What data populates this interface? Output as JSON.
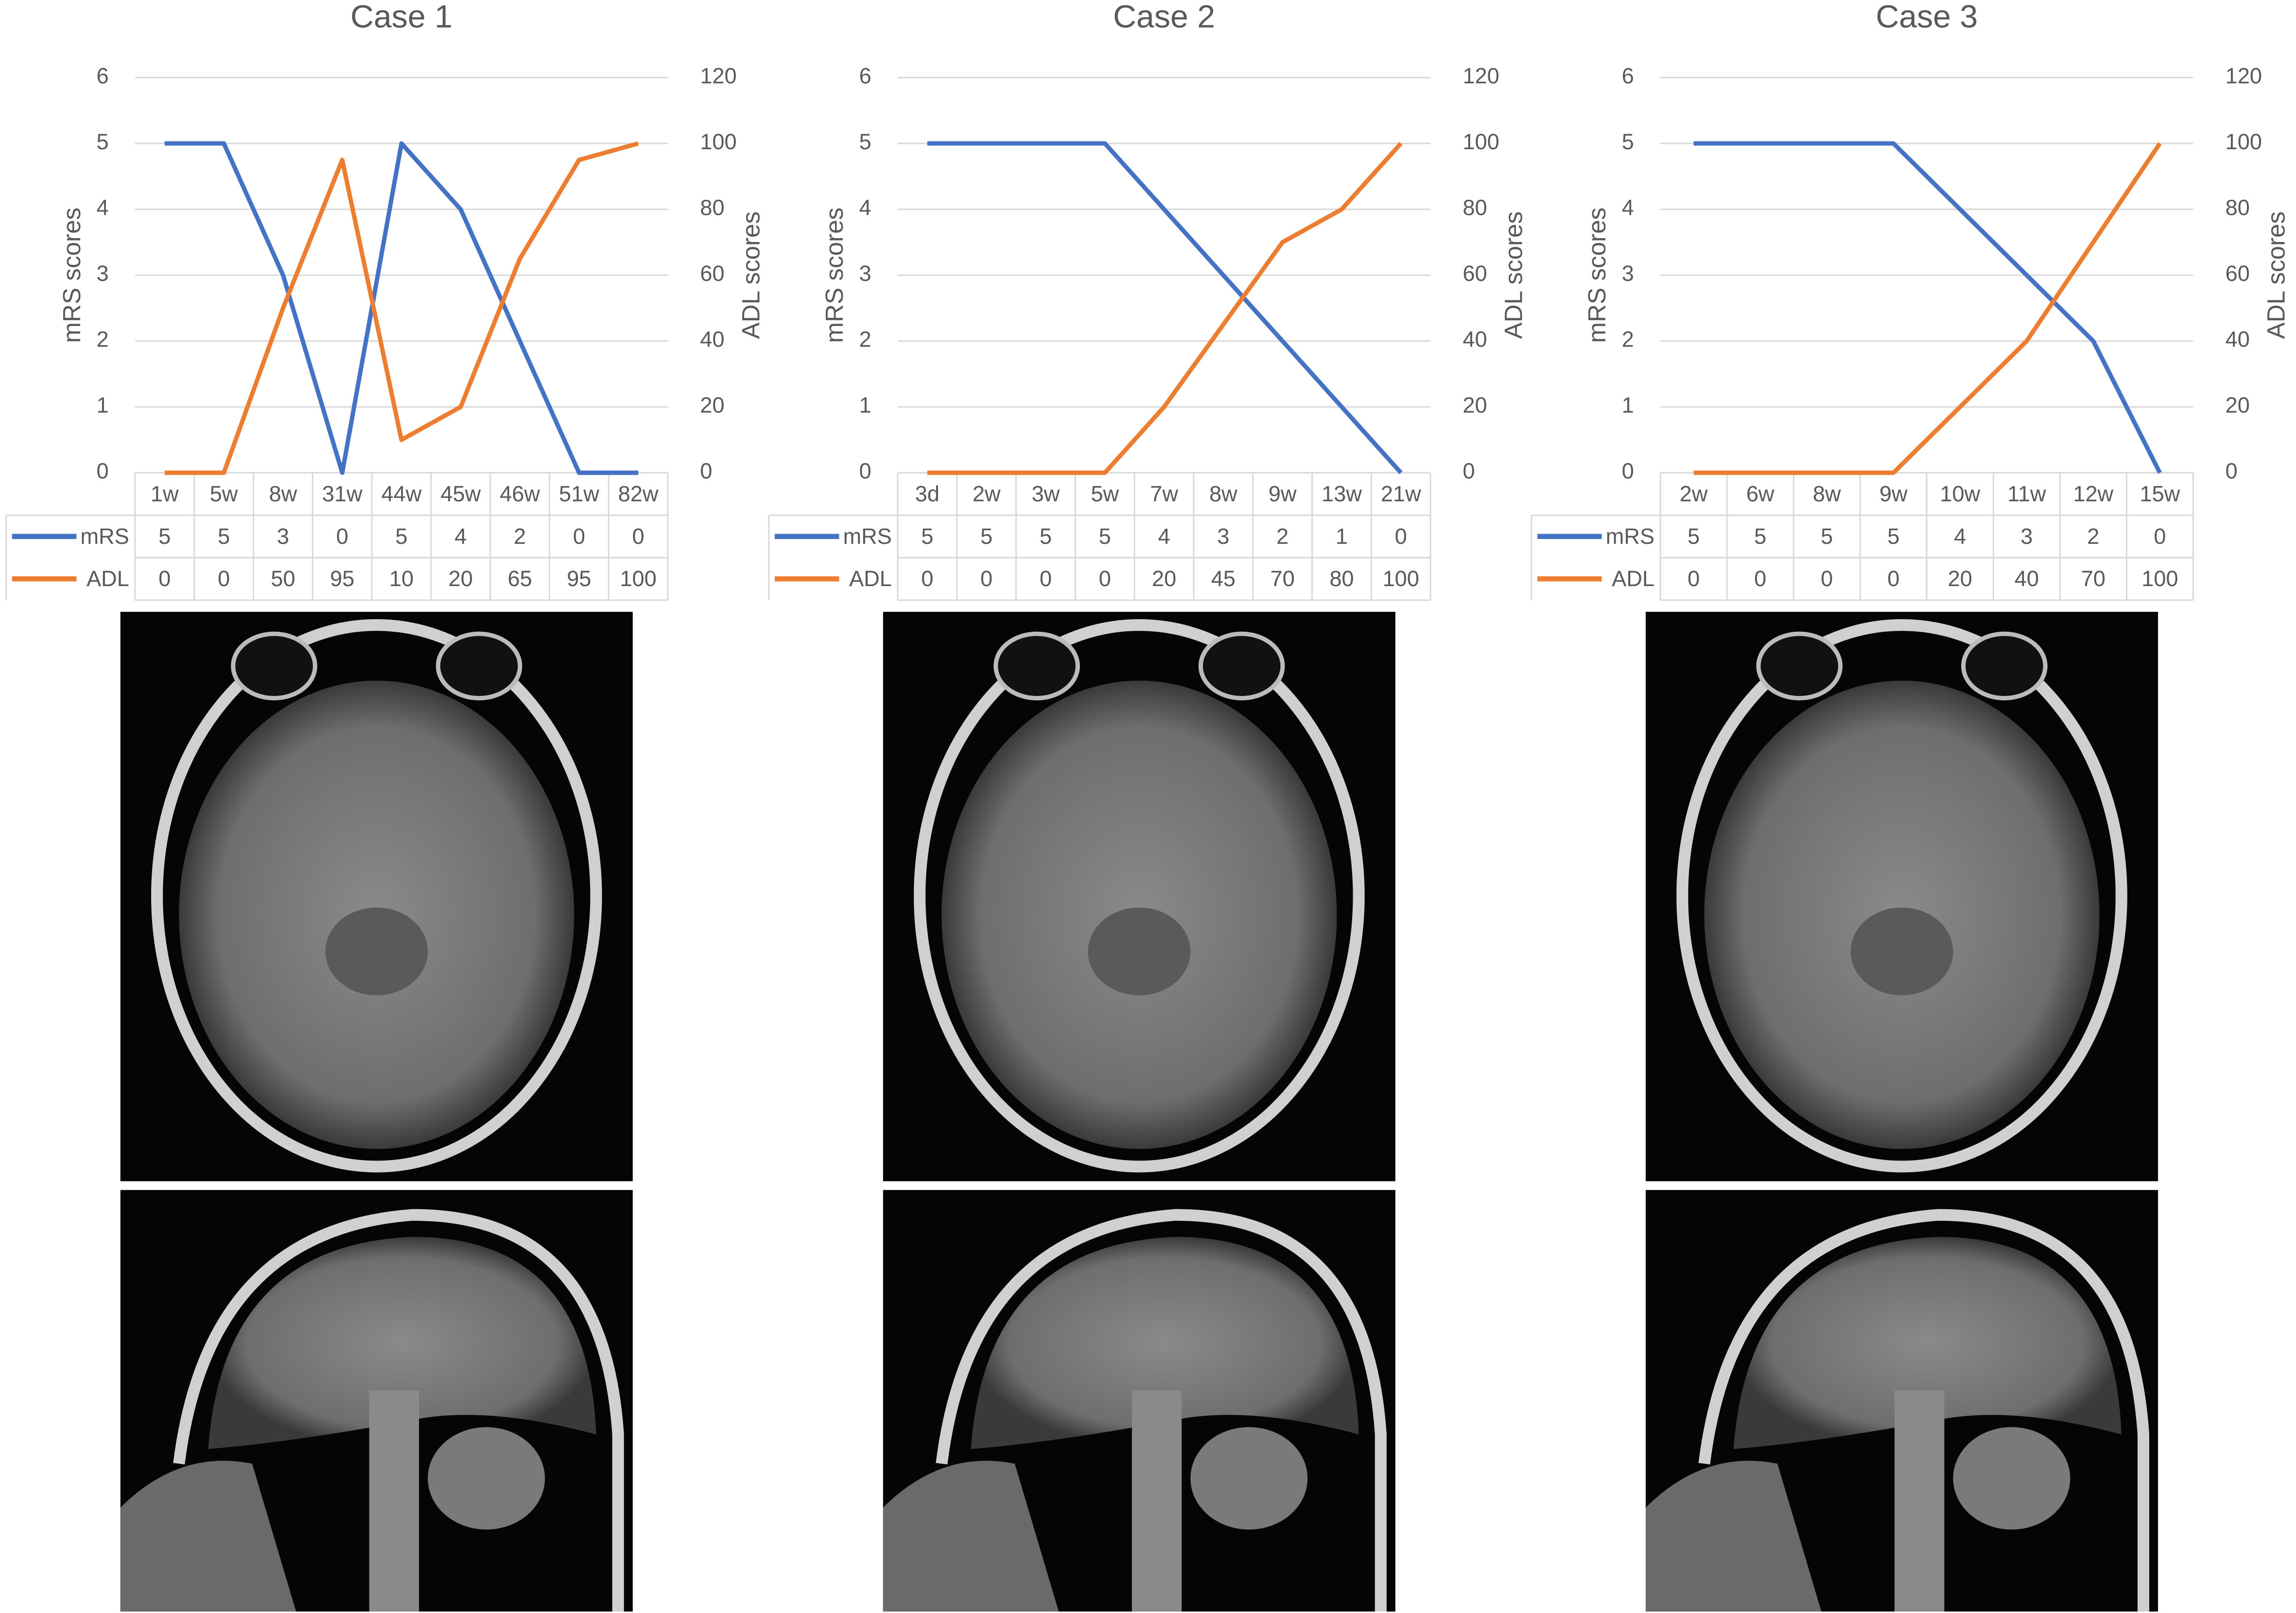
{
  "chart_data": [
    {
      "type": "line",
      "title": "Case 1",
      "y_label": "mRS scores",
      "y2_label": "ADL scores",
      "categories": [
        "1w",
        "5w",
        "8w",
        "31w",
        "44w",
        "45w",
        "46w",
        "51w",
        "82w"
      ],
      "series": [
        {
          "name": "mRS",
          "color": "#4472c4",
          "axis": "y",
          "values": [
            5,
            5,
            3,
            0,
            5,
            4,
            2,
            0,
            0
          ]
        },
        {
          "name": "ADL",
          "color": "#ed7d31",
          "axis": "y2",
          "values": [
            0,
            0,
            50,
            95,
            10,
            20,
            65,
            95,
            100
          ]
        }
      ],
      "ylim": [
        0,
        6
      ],
      "yticks": [
        0,
        1,
        2,
        3,
        4,
        5,
        6
      ],
      "y2lim": [
        0,
        120
      ],
      "y2ticks": [
        0,
        20,
        40,
        60,
        80,
        100,
        120
      ],
      "grid": true
    },
    {
      "type": "line",
      "title": "Case 2",
      "y_label": "mRS scores",
      "y2_label": "ADL scores",
      "categories": [
        "3d",
        "2w",
        "3w",
        "5w",
        "7w",
        "8w",
        "9w",
        "13w",
        "21w"
      ],
      "series": [
        {
          "name": "mRS",
          "color": "#4472c4",
          "axis": "y",
          "values": [
            5,
            5,
            5,
            5,
            4,
            3,
            2,
            1,
            0
          ]
        },
        {
          "name": "ADL",
          "color": "#ed7d31",
          "axis": "y2",
          "values": [
            0,
            0,
            0,
            0,
            20,
            45,
            70,
            80,
            100
          ]
        }
      ],
      "ylim": [
        0,
        6
      ],
      "yticks": [
        0,
        1,
        2,
        3,
        4,
        5,
        6
      ],
      "y2lim": [
        0,
        120
      ],
      "y2ticks": [
        0,
        20,
        40,
        60,
        80,
        100,
        120
      ],
      "grid": true
    },
    {
      "type": "line",
      "title": "Case 3",
      "y_label": "mRS scores",
      "y2_label": "ADL scores",
      "categories": [
        "2w",
        "6w",
        "8w",
        "9w",
        "10w",
        "11w",
        "12w",
        "15w"
      ],
      "series": [
        {
          "name": "mRS",
          "color": "#4472c4",
          "axis": "y",
          "values": [
            5,
            5,
            5,
            5,
            4,
            3,
            2,
            0
          ]
        },
        {
          "name": "ADL",
          "color": "#ed7d31",
          "axis": "y2",
          "values": [
            0,
            0,
            0,
            0,
            20,
            40,
            70,
            100
          ]
        }
      ],
      "ylim": [
        0,
        6
      ],
      "yticks": [
        0,
        1,
        2,
        3,
        4,
        5,
        6
      ],
      "y2lim": [
        0,
        120
      ],
      "y2ticks": [
        0,
        20,
        40,
        60,
        80,
        100,
        120
      ],
      "grid": true
    }
  ]
}
